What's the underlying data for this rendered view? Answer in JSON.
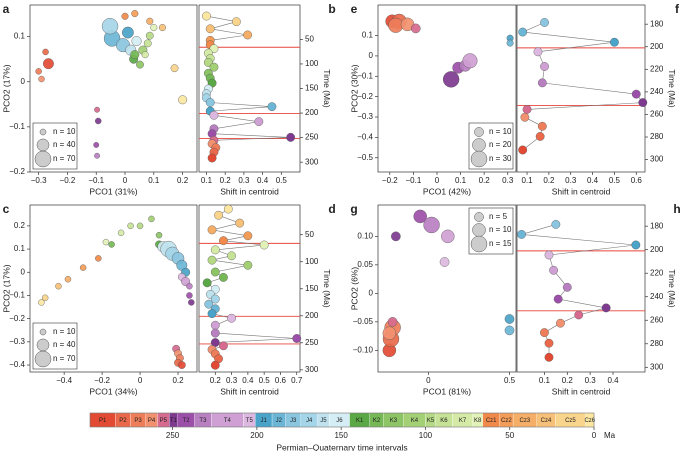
{
  "chart_data": [
    {
      "type": "scatter",
      "label": "a",
      "xlabel": "PCO1 (31%)",
      "ylabel": "PCO2 (17%)",
      "xlim": [
        -0.33,
        0.25
      ],
      "ylim": [
        -0.2,
        0.17
      ],
      "xticks": [
        {
          "value": -0.3,
          "label": "−0.3"
        },
        {
          "value": -0.2,
          "label": "−0.2"
        },
        {
          "value": -0.1,
          "label": "−0.1"
        },
        0,
        0.1,
        0.2
      ],
      "yticks": [
        {
          "value": -0.2,
          "label": "−0.2"
        },
        {
          "value": -0.1,
          "label": "−0.1"
        },
        0,
        0.1
      ],
      "intervals": [
        "P1",
        "P2",
        "P3",
        "P4",
        "P5",
        "T1",
        "T2",
        "T3",
        "J1",
        "J2",
        "J3",
        "J4",
        "J5",
        "J6",
        "K1",
        "K2",
        "K3",
        "K4",
        "K5",
        "K6",
        "K7",
        "K8",
        "Cz1",
        "Cz2",
        "Cz3",
        "Cz4",
        "Cz5",
        "Cz6"
      ],
      "x": [
        -0.266,
        -0.276,
        -0.3,
        -0.29,
        -0.097,
        -0.093,
        -0.1,
        -0.097,
        0.01,
        -0.045,
        -0.007,
        -0.052,
        0.02,
        0.04,
        0.03,
        0.034,
        0.052,
        0.062,
        0.086,
        0.079,
        0.07,
        0.1,
        0,
        0.034,
        0.086,
        0.13,
        0.172,
        0.2
      ],
      "y": [
        0.04,
        0.066,
        0.023,
        0.006,
        -0.062,
        -0.087,
        -0.14,
        -0.164,
        0.109,
        0.096,
        0.081,
        0.123,
        0.07,
        0.09,
        0.05,
        0.06,
        0.038,
        0.07,
        0.102,
        0.085,
        0.06,
        0.12,
        0.145,
        0.151,
        0.134,
        0.12,
        0.03,
        -0.04
      ],
      "sizes": [
        30,
        10,
        10,
        10,
        8,
        10,
        8,
        8,
        35,
        70,
        50,
        70,
        30,
        25,
        20,
        20,
        15,
        20,
        15,
        15,
        12,
        12,
        12,
        12,
        12,
        12,
        15,
        20
      ],
      "legend": {
        "labels": [
          "n = 10",
          "n = 40",
          "n = 70"
        ],
        "values": [
          10,
          40,
          70
        ],
        "corner": "lower left"
      }
    },
    {
      "type": "shift",
      "label": "b",
      "xlabel": "Shift in centroid",
      "ylabel": "Time (Ma)",
      "yaxis": "right",
      "xlim": [
        0.06,
        0.6
      ],
      "ylim": [
        320,
        -20
      ],
      "xticks": [
        0.1,
        0.2,
        0.3,
        0.4,
        0.5
      ],
      "yticks": [
        50,
        100,
        150,
        200,
        250,
        300
      ],
      "red_lines": [
        66,
        201,
        252
      ],
      "x": [
        0.1,
        0.26,
        0.12,
        0.32,
        0.12,
        0.12,
        0.14,
        0.11,
        0.12,
        0.11,
        0.14,
        0.11,
        0.12,
        0.13,
        0.11,
        0.1,
        0.1,
        0.12,
        0.45,
        0.12,
        0.14,
        0.38,
        0.14,
        0.13,
        0.55,
        0.14,
        0.13,
        0.15,
        0.14,
        0.13
      ],
      "y": [
        2.5,
        14,
        28.5,
        41,
        52,
        61,
        69,
        78,
        89,
        97,
        106.5,
        119,
        129,
        139,
        151,
        160.5,
        169,
        178.5,
        187,
        196,
        204.5,
        217.5,
        232,
        242,
        249.5,
        255.5,
        262.5,
        270.5,
        279.5,
        291.5
      ]
    },
    {
      "type": "scatter",
      "label": "c",
      "xlabel": "PCO1 (34%)",
      "ylabel": "PCO2 (17%)",
      "xlim": [
        -0.58,
        0.3
      ],
      "ylim": [
        -0.43,
        0.29
      ],
      "xticks": [
        {
          "value": -0.4,
          "label": "−0.4"
        },
        {
          "value": -0.2,
          "label": "−0.2"
        },
        0,
        0.2
      ],
      "yticks": [
        {
          "value": -0.4,
          "label": "−0.4"
        },
        {
          "value": -0.3,
          "label": "−0.3"
        },
        {
          "value": -0.2,
          "label": "−0.2"
        },
        {
          "value": -0.1,
          "label": "−0.1"
        },
        0,
        0.1,
        0.2
      ],
      "intervals": [
        "Cz6",
        "Cz5",
        "Cz4",
        "Cz3",
        "Cz2",
        "Cz1",
        "K8",
        "K7",
        "K6",
        "K5",
        "K4",
        "K3",
        "K2",
        "K1",
        "J6",
        "J5",
        "J4",
        "J3",
        "J2",
        "J1",
        "T5",
        "T4",
        "T3",
        "T2",
        "T1",
        "P5",
        "P4",
        "P3",
        "P2",
        "P1"
      ],
      "x": [
        -0.52,
        -0.5,
        -0.43,
        -0.38,
        -0.3,
        -0.22,
        -0.18,
        -0.1,
        -0.05,
        0,
        0.06,
        0.1,
        -0.15,
        0.1,
        0.12,
        0.15,
        0.17,
        0.2,
        0.22,
        0.24,
        0.22,
        0.24,
        0.26,
        0.26,
        0.27,
        0.19,
        0.2,
        0.21,
        0.2,
        0.22
      ],
      "y": [
        -0.13,
        -0.11,
        -0.06,
        -0.03,
        0.02,
        0.06,
        0.13,
        0.17,
        0.2,
        0.2,
        0.23,
        0.16,
        0.12,
        0.12,
        0.11,
        0.1,
        0.08,
        0.06,
        0.03,
        0,
        -0.02,
        -0.04,
        -0.06,
        -0.1,
        -0.13,
        -0.33,
        -0.35,
        -0.37,
        -0.39,
        -0.4
      ],
      "sizes": [
        10,
        10,
        10,
        10,
        10,
        10,
        10,
        10,
        10,
        10,
        10,
        10,
        10,
        15,
        30,
        70,
        50,
        40,
        30,
        20,
        15,
        20,
        10,
        10,
        10,
        15,
        15,
        15,
        15,
        15
      ],
      "legend": {
        "labels": [
          "n = 10",
          "n = 40",
          "n = 70"
        ],
        "values": [
          10,
          40,
          70
        ],
        "corner": "lower left"
      }
    },
    {
      "type": "shift",
      "label": "d",
      "xlabel": "Shift in centroid",
      "ylabel": "Time (Ma)",
      "yaxis": "right",
      "xlim": [
        0.1,
        0.72
      ],
      "ylim": [
        304,
        -5
      ],
      "xticks": [
        0.2,
        0.3,
        0.4,
        0.5,
        0.6,
        0.7
      ],
      "yticks": [
        50,
        100,
        150,
        200,
        250,
        300
      ],
      "red_lines": [
        66,
        201,
        252
      ],
      "x": [
        0.28,
        0.22,
        0.35,
        0.18,
        0.4,
        0.25,
        0.5,
        0.2,
        0.3,
        0.18,
        0.4,
        0.2,
        0.25,
        0.15,
        0.2,
        0.17,
        0.2,
        0.16,
        0.2,
        0.18,
        0.3,
        0.2,
        0.2,
        0.7,
        0.2,
        0.25,
        0.18,
        0.2,
        0.22,
        0.2
      ],
      "y": [
        2.5,
        14,
        28.5,
        41,
        52,
        61,
        69,
        78,
        89,
        97,
        106.5,
        119,
        129,
        139,
        151,
        160.5,
        169,
        178.5,
        187,
        196,
        204.5,
        217.5,
        232,
        242,
        249.5,
        255.5,
        262.5,
        270.5,
        279.5,
        291.5
      ]
    },
    {
      "type": "scatter",
      "label": "e",
      "xlabel": "PCO1 (42%)",
      "ylabel": "PCO2 (30%)",
      "xlim": [
        -0.25,
        0.335
      ],
      "ylim": [
        -0.57,
        0.25
      ],
      "xticks": [
        {
          "value": -0.2,
          "label": "−0.2"
        },
        {
          "value": -0.1,
          "label": "−0.1"
        },
        0,
        0.1,
        0.2,
        0.3
      ],
      "yticks": [
        {
          "value": -0.5,
          "label": "−0.5"
        },
        {
          "value": -0.4,
          "label": "−0.4"
        },
        {
          "value": -0.3,
          "label": "−0.3"
        },
        {
          "value": -0.2,
          "label": "−0.2"
        },
        {
          "value": -0.1,
          "label": "−0.1"
        },
        0,
        0.1
      ],
      "intervals": [
        "P1",
        "P2",
        "P3",
        "P4",
        "P5",
        "T1",
        "T2",
        "T3",
        "T4",
        "J1",
        "J2"
      ],
      "x": [
        -0.19,
        -0.16,
        -0.175,
        -0.125,
        -0.09,
        0.06,
        0.09,
        0.12,
        0.14,
        0.31,
        0.31
      ],
      "y": [
        0.17,
        0.17,
        0.15,
        0.155,
        0.135,
        -0.115,
        -0.058,
        -0.048,
        -0.024,
        0.087,
        0.063
      ],
      "sizes": [
        20,
        25,
        25,
        20,
        10,
        30,
        15,
        15,
        25,
        5,
        5
      ],
      "legend": {
        "labels": [
          "n = 10",
          "n = 20",
          "n = 30"
        ],
        "values": [
          10,
          20,
          30
        ],
        "corner": "lower right"
      }
    },
    {
      "type": "shift",
      "label": "f",
      "xlabel": "Shift in centroid",
      "ylabel": "Time (Ma)",
      "yaxis": "right",
      "xlim": [
        0.054,
        0.64
      ],
      "ylim": [
        311,
        163
      ],
      "xticks": [
        0.1,
        0.2,
        0.3,
        0.4,
        0.5,
        0.6
      ],
      "yticks": [
        180,
        200,
        220,
        240,
        260,
        280,
        300
      ],
      "red_lines": [
        201,
        252
      ],
      "x": [
        0.18,
        0.08,
        0.5,
        0.15,
        0.18,
        0.17,
        0.6,
        0.63,
        0.1,
        0.09,
        0.17,
        0.16,
        0.08
      ],
      "y": [
        178.5,
        187,
        196,
        204.5,
        217.5,
        232,
        242,
        249.5,
        255.5,
        262.5,
        270.5,
        279.5,
        291.5
      ]
    },
    {
      "type": "scatter",
      "label": "g",
      "xlabel": "PCO1 (81%)",
      "ylabel": "PCO2 (6%)",
      "xlim": [
        -0.31,
        0.54
      ],
      "ylim": [
        -0.138,
        0.155
      ],
      "xticks": [
        0,
        0.5
      ],
      "yticks": [
        {
          "value": -0.1,
          "label": "−0.10"
        },
        {
          "value": -0.05,
          "label": "−0.05"
        },
        0,
        0.05,
        {
          "value": 0.1,
          "label": "0.10"
        }
      ],
      "intervals": [
        "P1",
        "P2",
        "P3",
        "P4",
        "P5",
        "T1",
        "T2",
        "T3",
        "T4",
        "T5",
        "J1",
        "J2"
      ],
      "x": [
        -0.24,
        -0.23,
        -0.22,
        -0.24,
        -0.22,
        -0.2,
        -0.05,
        0.02,
        0.12,
        0.1,
        0.5,
        0.5
      ],
      "y": [
        -0.1,
        -0.08,
        -0.06,
        -0.07,
        -0.05,
        0.1,
        0.135,
        0.12,
        0.1,
        0.055,
        -0.045,
        -0.065
      ],
      "sizes": [
        10,
        15,
        15,
        10,
        5,
        5,
        10,
        15,
        10,
        5,
        5,
        5
      ],
      "legend": {
        "labels": [
          "n = 5",
          "n = 10",
          "n = 15"
        ],
        "values": [
          5,
          10,
          15
        ],
        "corner": "upper right"
      }
    },
    {
      "type": "shift",
      "label": "h",
      "xlabel": "Shift in centroid",
      "ylabel": "Time (Ma)",
      "yaxis": "right",
      "xlim": [
        -0.02,
        0.54
      ],
      "ylim": [
        304,
        162
      ],
      "xticks": [
        0.1,
        0.2,
        0.3,
        0.4
      ],
      "yticks": [
        180,
        200,
        220,
        240,
        260,
        280,
        300
      ],
      "red_lines": [
        201,
        252
      ],
      "x": [
        0.15,
        0,
        0.5,
        0.12,
        0.14,
        0.2,
        0.16,
        0.37,
        0.25,
        0.17,
        0.1,
        0.12,
        0.12
      ],
      "y": [
        178.5,
        187,
        196,
        204.5,
        217.5,
        232,
        242,
        249.5,
        255.5,
        262.5,
        270.5,
        279.5,
        291.5
      ]
    }
  ],
  "colorbar": {
    "caption": "Permian–Quaternary time intervals",
    "unit": "Ma",
    "xlim": [
      299,
      0
    ],
    "ticks": [
      250,
      200,
      150,
      100,
      50,
      0
    ],
    "names": [
      "P1",
      "P2",
      "P3",
      "P4",
      "P5",
      "T1",
      "T2",
      "T3",
      "T4",
      "T5",
      "J1",
      "J2",
      "J3",
      "J4",
      "J5",
      "J6",
      "K1",
      "K2",
      "K3",
      "K4",
      "K5",
      "K6",
      "K7",
      "K8",
      "Cz1",
      "Cz2",
      "Cz3",
      "Cz4",
      "Cz5",
      "Cz6"
    ],
    "boundaries": [
      299,
      284,
      275,
      266,
      259,
      252,
      247,
      237,
      227,
      208,
      201,
      191,
      183,
      174,
      164,
      157,
      145,
      133,
      125,
      113,
      100,
      94,
      84,
      72,
      66,
      56,
      48,
      34,
      23,
      5,
      0
    ],
    "colors": [
      "#e34a33",
      "#e9694a",
      "#ee7d5a",
      "#f29170",
      "#d66a8f",
      "#7d3a8f",
      "#9c4fa8",
      "#b87fc1",
      "#cfa0d3",
      "#dcb8e0",
      "#4aa3c8",
      "#6bb6d6",
      "#8ac6e0",
      "#a5d5e8",
      "#bfe2ee",
      "#d5edf4",
      "#5aa845",
      "#75b855",
      "#8dc465",
      "#a3cf75",
      "#b5d985",
      "#c6e296",
      "#d5eaa7",
      "#e2f1b8",
      "#f0894a",
      "#f39c58",
      "#f5ae67",
      "#f7c078",
      "#f9d48c",
      "#fbe7a2"
    ]
  }
}
